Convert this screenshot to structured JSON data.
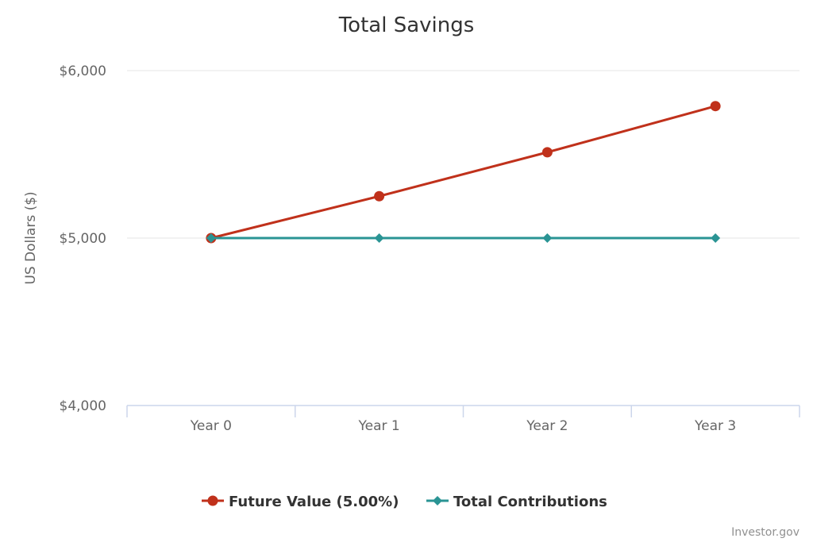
{
  "chart_data": {
    "type": "line",
    "title": "Total Savings",
    "xlabel": "",
    "ylabel": "US Dollars ($)",
    "categories": [
      "Year 0",
      "Year 1",
      "Year 2",
      "Year 3"
    ],
    "ylim": [
      4000,
      6000
    ],
    "yticks": [
      4000,
      5000,
      6000
    ],
    "ytick_labels": [
      "$4,000",
      "$5,000",
      "$6,000"
    ],
    "grid": true,
    "legend_position": "bottom-center",
    "series": [
      {
        "name": "Future Value (5.00%)",
        "values": [
          5000,
          5250,
          5512.5,
          5788.13
        ],
        "color": "#c0311b",
        "marker": "circle"
      },
      {
        "name": "Total Contributions",
        "values": [
          5000,
          5000,
          5000,
          5000
        ],
        "color": "#2a9494",
        "marker": "diamond"
      }
    ]
  },
  "credits": "Investor.gov"
}
